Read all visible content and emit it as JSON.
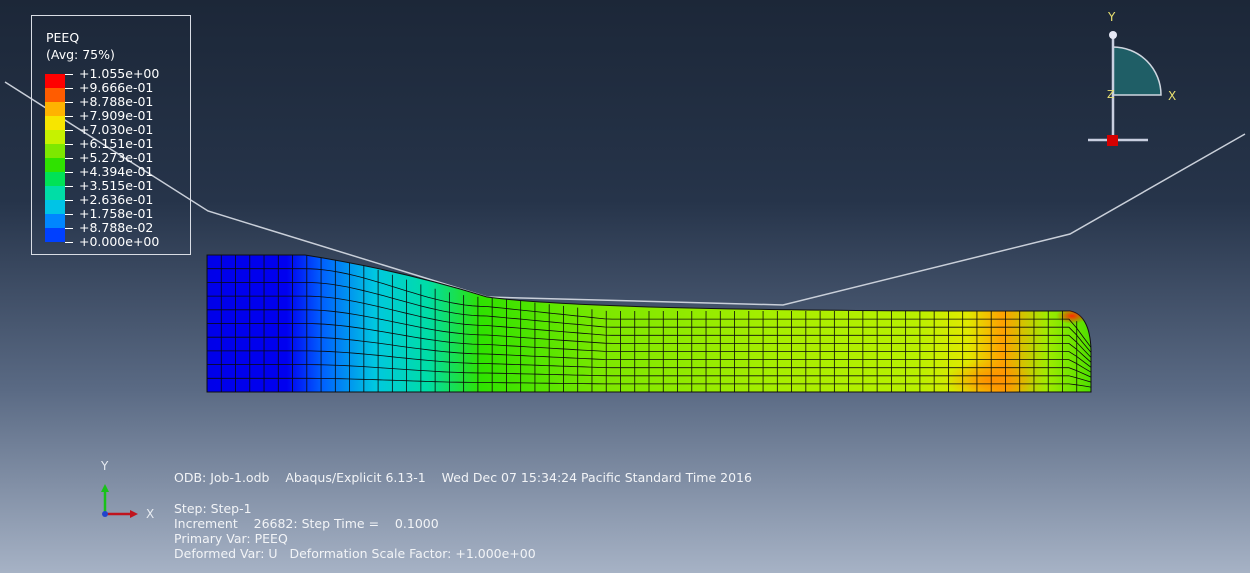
{
  "legend": {
    "variable": "PEEQ",
    "averaging": "(Avg: 75%)",
    "levels": [
      "+1.055e+00",
      "+9.666e-01",
      "+8.788e-01",
      "+7.909e-01",
      "+7.030e-01",
      "+6.151e-01",
      "+5.273e-01",
      "+4.394e-01",
      "+3.515e-01",
      "+2.636e-01",
      "+1.758e-01",
      "+8.788e-02",
      "+0.000e+00"
    ],
    "colors": [
      "#ff0000",
      "#ff5c00",
      "#ffb300",
      "#f7e500",
      "#c6f200",
      "#7de800",
      "#2fe200",
      "#00e256",
      "#00dda6",
      "#00c4e6",
      "#0086ff",
      "#0040ff",
      "#0000ea"
    ]
  },
  "triad_view": {
    "y_label": "Y",
    "x_label": "X",
    "z_label": "Z"
  },
  "triad_global": {
    "y_label": "Y",
    "x_label": "X"
  },
  "info": {
    "odb_line": "ODB: Job-1.odb    Abaqus/Explicit 6.13-1    Wed Dec 07 15:34:24 Pacific Standard Time 2016",
    "step_line": "Step: Step-1",
    "increment_line": "Increment    26682: Step Time =    0.1000",
    "primary_var_line": "Primary Var: PEEQ",
    "deformed_var_line": "Deformed Var: U   Deformation Scale Factor: +1.000e+00"
  }
}
